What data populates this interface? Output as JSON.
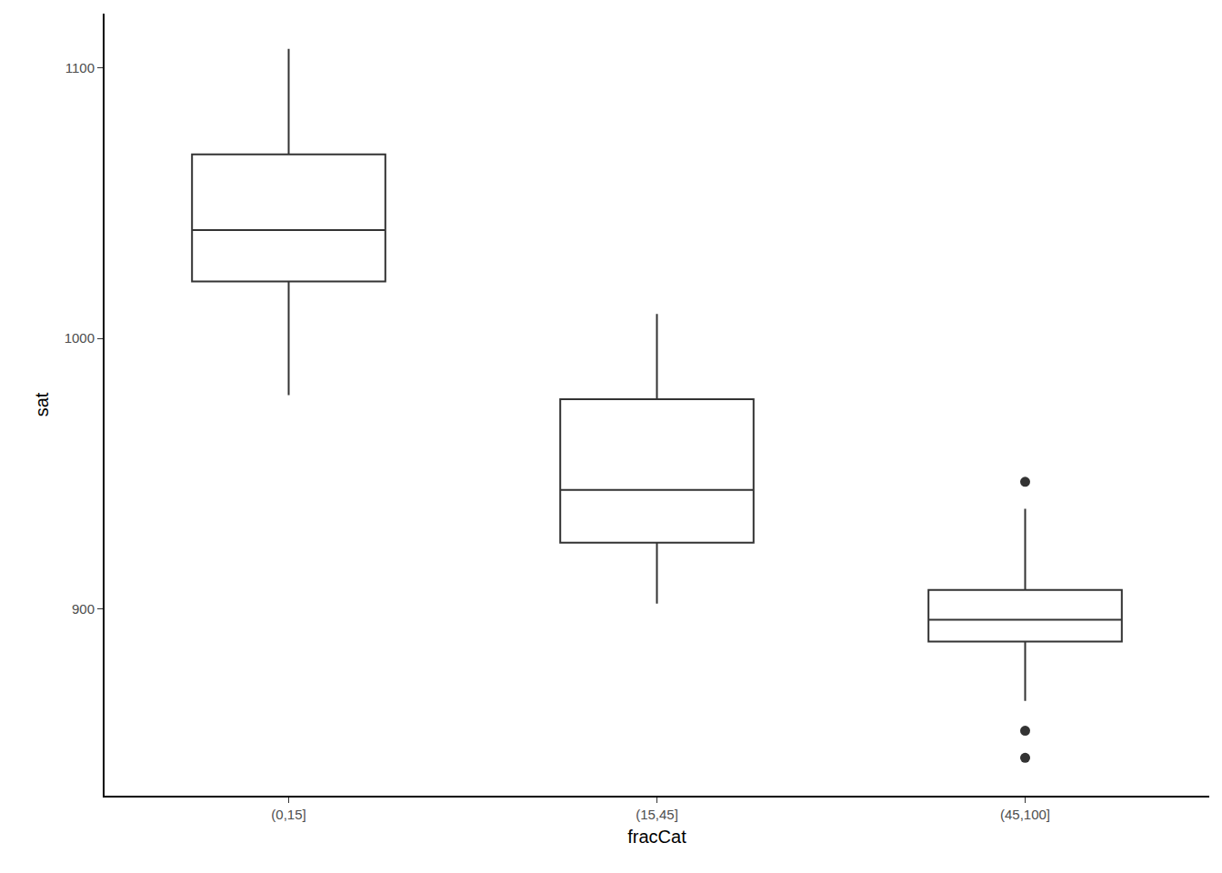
{
  "chart_data": {
    "type": "box",
    "x_label": "fracCat",
    "y_label": "sat",
    "categories": [
      "(0,15]",
      "(15,45]",
      "(45,100]"
    ],
    "whisker_low": [
      979,
      902,
      866
    ],
    "q1": [
      1021,
      924.5,
      888
    ],
    "median": [
      1040,
      944,
      896
    ],
    "q3": [
      1068,
      977.5,
      907
    ],
    "whisker_high": [
      1107,
      1009,
      937
    ],
    "outliers": [
      [],
      [],
      [
        947,
        855,
        845
      ]
    ],
    "color": "#333333",
    "ylim": [
      831,
      1120
    ],
    "yticks": [
      900,
      1000,
      1100
    ],
    "grid": false
  }
}
